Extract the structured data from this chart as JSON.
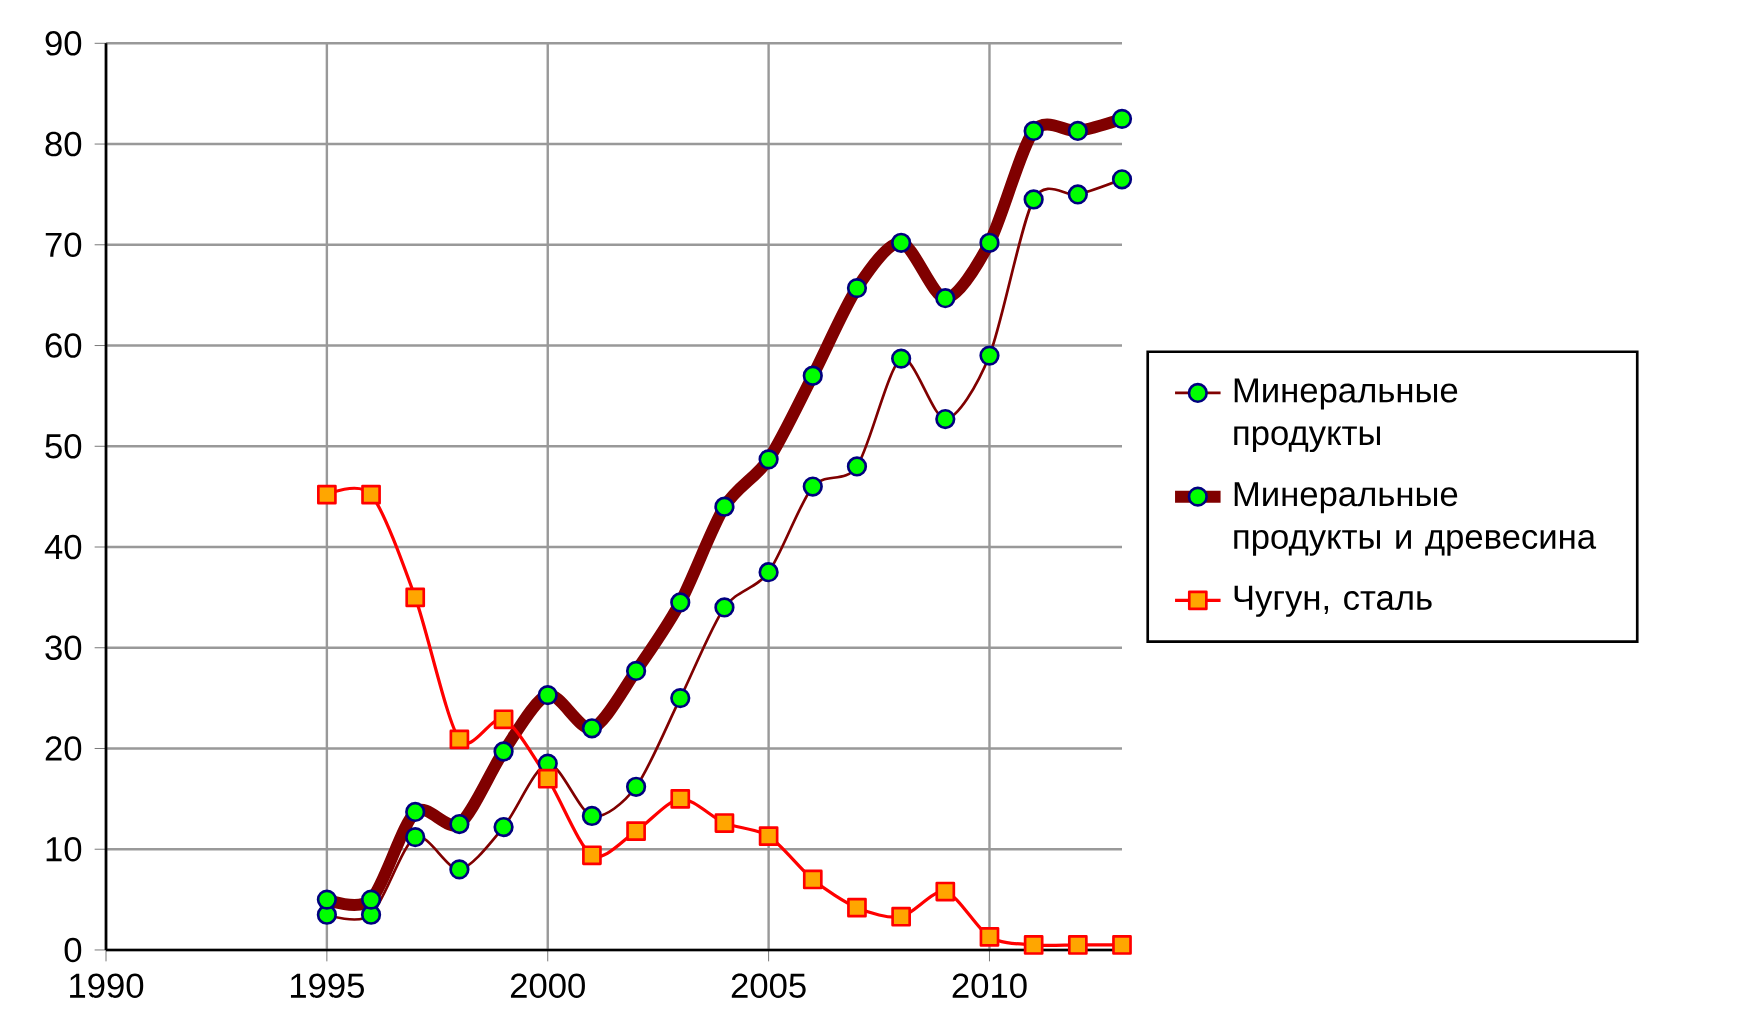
{
  "chart_data": {
    "type": "line",
    "x": [
      1995,
      1996,
      1997,
      1998,
      1999,
      2000,
      2001,
      2002,
      2003,
      2004,
      2005,
      2006,
      2007,
      2008,
      2009,
      2010,
      2011,
      2012,
      2013
    ],
    "series": [
      {
        "name": "Минеральные продукты",
        "color": "#800000",
        "marker": "circle",
        "values": [
          3.5,
          3.5,
          11.2,
          8,
          12.2,
          18.5,
          13.3,
          16.2,
          25,
          34,
          37.5,
          46,
          48,
          58.7,
          52.7,
          59,
          74.5,
          75,
          76.5
        ]
      },
      {
        "name": "Минеральные продукты и древесина",
        "color": "#800000",
        "marker": "circle",
        "values": [
          5,
          5,
          13.7,
          12.5,
          19.7,
          25.3,
          22,
          27.7,
          34.5,
          44,
          48.7,
          57,
          65.7,
          70.2,
          64.7,
          70.2,
          81.3,
          81.3,
          82.5
        ]
      },
      {
        "name": "Чугун, сталь",
        "color": "#ff0000",
        "marker": "square",
        "values": [
          45.2,
          45.2,
          35,
          20.9,
          22.9,
          17,
          9.4,
          11.8,
          15,
          12.6,
          11.3,
          7,
          4.2,
          3.3,
          5.8,
          1.3,
          0.5,
          0.5,
          0.5
        ]
      }
    ],
    "xlim": [
      1990,
      2013
    ],
    "xticks": [
      1990,
      1995,
      2000,
      2005,
      2010
    ],
    "ylim": [
      0,
      90
    ],
    "yticks": [
      0,
      10,
      20,
      30,
      40,
      50,
      60,
      70,
      80,
      90
    ],
    "grid": true,
    "legend": "right",
    "line_style": "solid"
  }
}
